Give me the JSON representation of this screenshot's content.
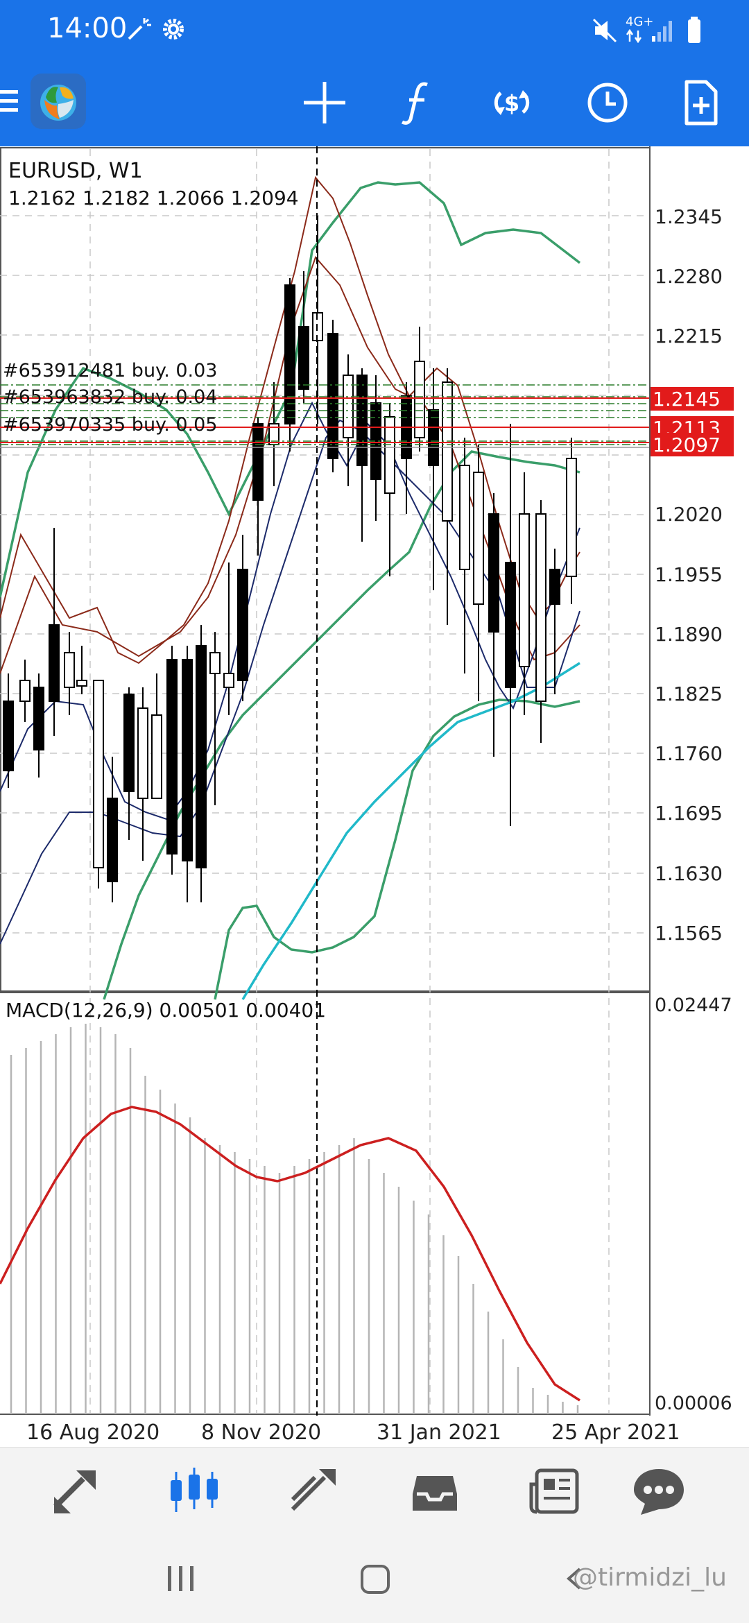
{
  "status_bar": {
    "time": "14:00",
    "network": "4G+"
  },
  "toolbar": {
    "menu_icon": "menu-icon",
    "app_logo": "metatrader-logo",
    "buttons": [
      "crosshair-icon",
      "indicators-icon",
      "symbols-icon",
      "timeframe-icon",
      "new-order-icon"
    ]
  },
  "chart": {
    "symbol_timeframe": "EURUSD, W1",
    "ohlc": "1.2162 1.2182 1.2066 1.2094",
    "price_ticks": [
      "1.2345",
      "1.2280",
      "1.2215",
      "1.2020",
      "1.1955",
      "1.1890",
      "1.1825",
      "1.1760",
      "1.1695",
      "1.1630",
      "1.1565"
    ],
    "price_labels": [
      {
        "value": "1.2145",
        "color": "#e21b1b"
      },
      {
        "value": "1.2113",
        "color": "#e21b1b"
      },
      {
        "value": "1.2097",
        "color": "#e21b1b"
      }
    ],
    "orders": [
      "#653912481 buy. 0.03",
      "#653963832 buy. 0.04",
      "#653970335 buy. 0.05"
    ],
    "macd_label": "MACD(12,26,9) 0.00501 0.00401",
    "macd_ticks": [
      "0.02447",
      "0.00006"
    ],
    "date_labels": [
      "16 Aug 2020",
      "8 Nov 2020",
      "31 Jan 2021",
      "25 Apr 2021"
    ]
  },
  "bottom_nav": {
    "items": [
      "quotes-icon",
      "chart-icon",
      "trade-icon",
      "history-icon",
      "news-icon",
      "chat-icon"
    ],
    "active_index": 1,
    "active_color": "#1a73e8"
  },
  "watermark": "@tirmidzi_lu"
}
